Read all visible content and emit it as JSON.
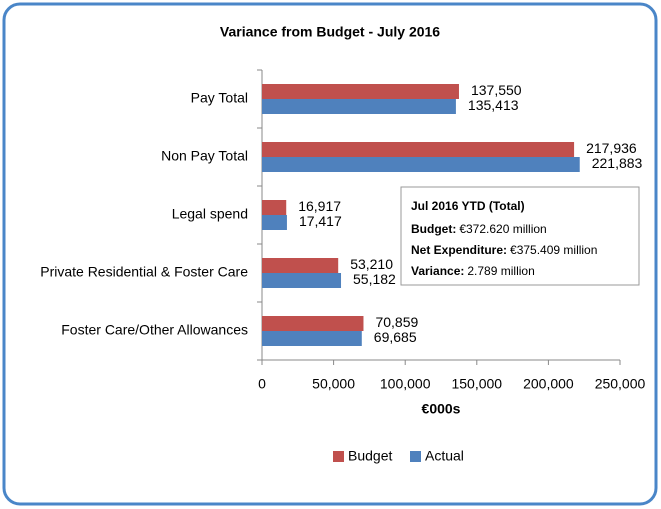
{
  "chart_data": {
    "type": "bar",
    "orientation": "horizontal",
    "title": "Variance from Budget - July 2016",
    "x_label": "€000s",
    "categories": [
      "Pay Total",
      "Non Pay Total",
      "Legal spend",
      "Private Residential & Foster Care",
      "Foster Care/Other Allowances"
    ],
    "series": [
      {
        "name": "Budget",
        "color": "#c0504d",
        "values": [
          137550,
          217936,
          16917,
          53210,
          70859
        ],
        "value_labels": [
          "137,550",
          "217,936",
          "16,917",
          "53,210",
          "70,859"
        ]
      },
      {
        "name": "Actual",
        "color": "#4f81bd",
        "values": [
          135413,
          221883,
          17417,
          55182,
          69685
        ],
        "value_labels": [
          "135,413",
          "221,883",
          "17,417",
          "55,182",
          "69,685"
        ]
      }
    ],
    "xlim": [
      0,
      250000
    ],
    "xticks": [
      0,
      {
        "value": 50000,
        "label": "50,000"
      },
      {
        "value": 100000,
        "label": "100,000"
      },
      {
        "value": 150000,
        "label": "150,000"
      },
      {
        "value": 200000,
        "label": "200,000"
      },
      {
        "value": 250000,
        "label": "250,000"
      }
    ],
    "grid": false,
    "legend": "bottom",
    "annotation": {
      "title": "Jul 2016 YTD (Total)",
      "lines": [
        {
          "label": "Budget:",
          "value": "€372.620 million"
        },
        {
          "label": "Net Expenditure:",
          "value": "€375.409 million"
        },
        {
          "label": "Variance:",
          "value": "2.789 million"
        }
      ]
    }
  }
}
